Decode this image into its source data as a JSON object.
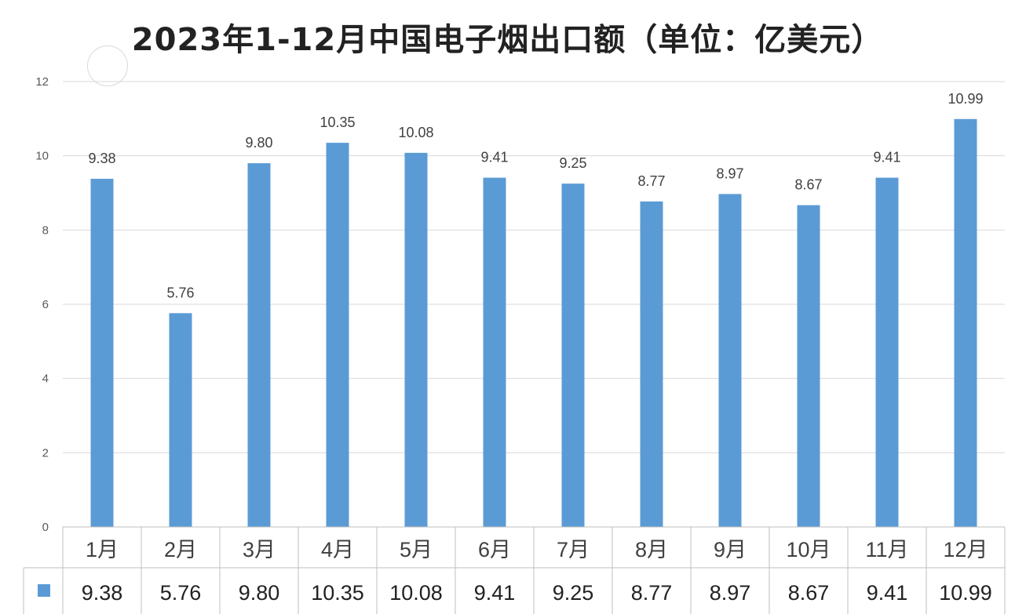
{
  "chart_data": {
    "type": "bar",
    "title": "2023年1-12月中国电子烟出口额（单位：亿美元）",
    "categories": [
      "1月",
      "2月",
      "3月",
      "4月",
      "5月",
      "6月",
      "7月",
      "8月",
      "9月",
      "10月",
      "11月",
      "12月"
    ],
    "values": [
      9.38,
      5.76,
      9.8,
      10.35,
      10.08,
      9.41,
      9.25,
      8.77,
      8.97,
      8.67,
      9.41,
      10.99
    ],
    "value_labels": [
      "9.38",
      "5.76",
      "9.80",
      "10.35",
      "10.08",
      "9.41",
      "9.25",
      "8.77",
      "8.97",
      "8.67",
      "9.41",
      "10.99"
    ],
    "ylim": [
      0,
      12
    ],
    "yticks": [
      0,
      2,
      4,
      6,
      8,
      10,
      12
    ],
    "grid": true,
    "legend": "data table below chart",
    "data_table": true,
    "bar_color": "#5b9bd5"
  }
}
